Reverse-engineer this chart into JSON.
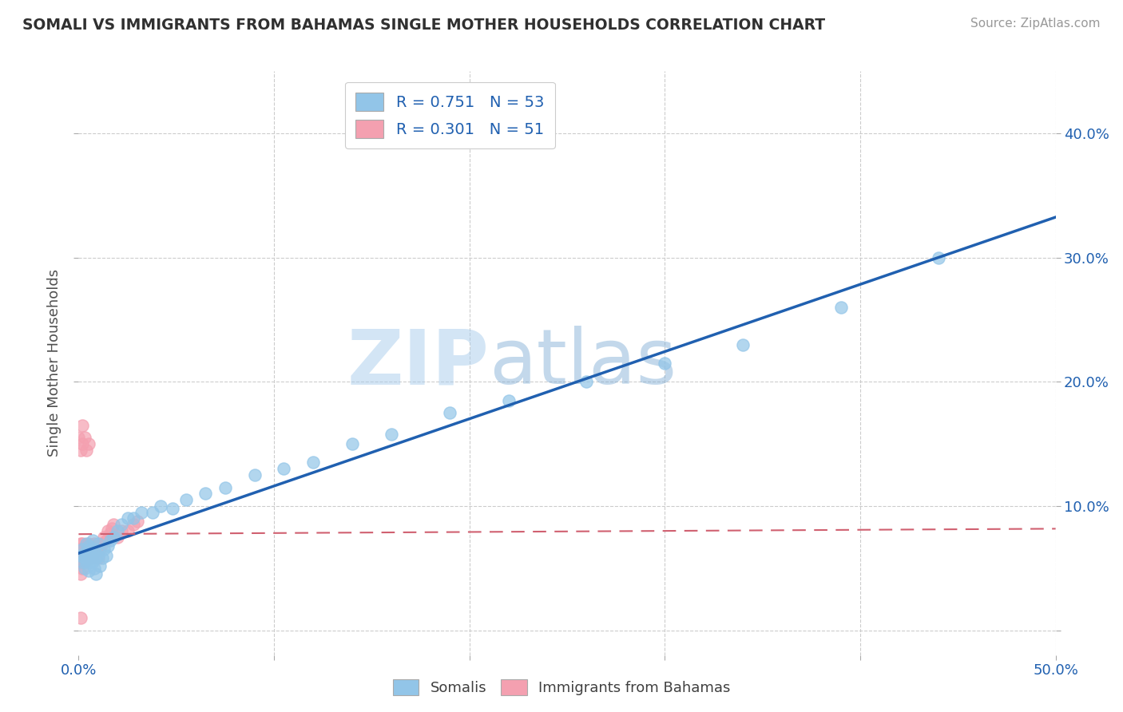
{
  "title": "SOMALI VS IMMIGRANTS FROM BAHAMAS SINGLE MOTHER HOUSEHOLDS CORRELATION CHART",
  "source": "Source: ZipAtlas.com",
  "ylabel": "Single Mother Households",
  "xlim": [
    0.0,
    0.5
  ],
  "ylim": [
    -0.02,
    0.45
  ],
  "plot_ylim": [
    -0.02,
    0.45
  ],
  "xticks": [
    0.0,
    0.1,
    0.2,
    0.3,
    0.4,
    0.5
  ],
  "yticks": [
    0.0,
    0.1,
    0.2,
    0.3,
    0.4
  ],
  "somali_color": "#92C5E8",
  "bahamas_color": "#F4A0B0",
  "somali_line_color": "#2060B0",
  "bahamas_line_color": "#D06070",
  "watermark_zip": "ZIP",
  "watermark_atlas": "atlas",
  "legend_R_somali": "R = 0.751",
  "legend_N_somali": "N = 53",
  "legend_R_bahamas": "R = 0.301",
  "legend_N_bahamas": "N = 51",
  "somali_x": [
    0.001,
    0.002,
    0.002,
    0.003,
    0.003,
    0.003,
    0.004,
    0.004,
    0.005,
    0.005,
    0.005,
    0.006,
    0.006,
    0.006,
    0.007,
    0.007,
    0.007,
    0.008,
    0.008,
    0.009,
    0.009,
    0.01,
    0.01,
    0.011,
    0.012,
    0.013,
    0.014,
    0.015,
    0.016,
    0.018,
    0.02,
    0.022,
    0.025,
    0.028,
    0.032,
    0.038,
    0.042,
    0.048,
    0.055,
    0.065,
    0.075,
    0.09,
    0.105,
    0.12,
    0.14,
    0.16,
    0.19,
    0.22,
    0.26,
    0.3,
    0.34,
    0.39,
    0.44
  ],
  "somali_y": [
    0.06,
    0.055,
    0.065,
    0.05,
    0.058,
    0.062,
    0.055,
    0.07,
    0.048,
    0.062,
    0.068,
    0.055,
    0.058,
    0.065,
    0.06,
    0.055,
    0.072,
    0.05,
    0.065,
    0.058,
    0.045,
    0.06,
    0.07,
    0.052,
    0.058,
    0.065,
    0.06,
    0.068,
    0.072,
    0.075,
    0.08,
    0.085,
    0.09,
    0.09,
    0.095,
    0.095,
    0.1,
    0.098,
    0.105,
    0.11,
    0.115,
    0.125,
    0.13,
    0.135,
    0.15,
    0.158,
    0.175,
    0.185,
    0.2,
    0.215,
    0.23,
    0.26,
    0.3
  ],
  "bahamas_x": [
    0.0,
    0.0,
    0.0,
    0.001,
    0.001,
    0.001,
    0.001,
    0.001,
    0.002,
    0.002,
    0.002,
    0.002,
    0.003,
    0.003,
    0.003,
    0.004,
    0.004,
    0.004,
    0.005,
    0.005,
    0.005,
    0.006,
    0.006,
    0.007,
    0.007,
    0.008,
    0.008,
    0.009,
    0.01,
    0.01,
    0.011,
    0.012,
    0.013,
    0.014,
    0.015,
    0.016,
    0.017,
    0.018,
    0.02,
    0.022,
    0.025,
    0.028,
    0.03,
    0.0,
    0.001,
    0.002,
    0.002,
    0.003,
    0.004,
    0.005,
    0.001
  ],
  "bahamas_y": [
    0.055,
    0.06,
    0.065,
    0.045,
    0.055,
    0.06,
    0.065,
    0.07,
    0.05,
    0.06,
    0.065,
    0.07,
    0.055,
    0.06,
    0.065,
    0.058,
    0.062,
    0.068,
    0.06,
    0.065,
    0.07,
    0.058,
    0.065,
    0.06,
    0.068,
    0.062,
    0.07,
    0.065,
    0.058,
    0.068,
    0.065,
    0.07,
    0.075,
    0.072,
    0.08,
    0.078,
    0.082,
    0.085,
    0.075,
    0.08,
    0.08,
    0.085,
    0.088,
    0.155,
    0.145,
    0.15,
    0.165,
    0.155,
    0.145,
    0.15,
    0.01
  ]
}
